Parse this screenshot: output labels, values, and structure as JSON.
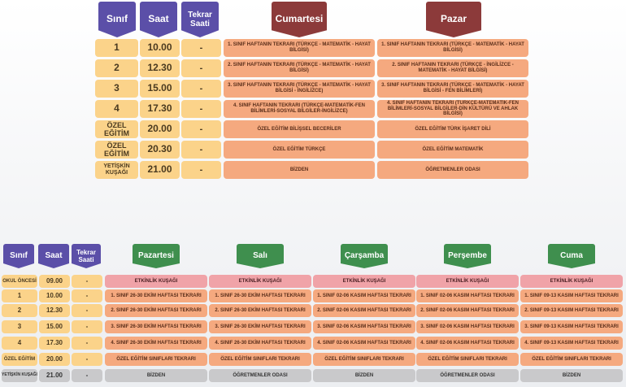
{
  "top": {
    "headers": {
      "sinif": "Sınıf",
      "saat": "Saat",
      "tekrar": "Tekrar Saati",
      "day1": "Cumartesi",
      "day2": "Pazar"
    },
    "rows": [
      {
        "sinif": "1",
        "saat": "10.00",
        "tekrar": "-",
        "d1": "1. SINIF HAFTANIN TEKRARI (TÜRKÇE - MATEMATİK - HAYAT BİLGİSİ)",
        "d2": "1. SINIF HAFTANIN TEKRARI (TÜRKÇE - MATEMATİK - HAYAT BİLGİSİ)"
      },
      {
        "sinif": "2",
        "saat": "12.30",
        "tekrar": "-",
        "d1": "2. SINIF HAFTANIN TEKRARI (TÜRKÇE - MATEMATİK - HAYAT BİLGİSİ)",
        "d2": "2. SINIF HAFTANIN TEKRARI (TÜRKÇE - İNGİLİZCE - MATEMATİK - HAYAT BİLGİSİ)"
      },
      {
        "sinif": "3",
        "saat": "15.00",
        "tekrar": "-",
        "d1": "3. SINIF HAFTANIN TEKRARI (TÜRKÇE - MATEMATİK - HAYAT BİLGİSİ - İNGİLİZCE)",
        "d2": "3. SINIF HAFTANIN TEKRARI (TÜRKÇE - MATEMATİK - HAYAT BİLGİSİ - FEN BİLİMLERİ)"
      },
      {
        "sinif": "4",
        "saat": "17.30",
        "tekrar": "-",
        "d1": "4. SINIF HAFTANIN TEKRARI (TÜRKÇE-MATEMATİK-FEN BİLİMLERİ-SOSYAL BİLGİLER-İNGİLİZCE)",
        "d2": "4. SINIF HAFTANIN TEKRARI (TÜRKÇE-MATEMATİK-FEN BİLİMLERİ-SOSYAL BİLGİLER-DİN KÜLTÜRÜ VE AHLAK BİLGİSİ)"
      },
      {
        "sinif": "ÖZEL EĞİTİM",
        "saat": "20.00",
        "tekrar": "-",
        "d1": "ÖZEL EĞİTİM BİLİŞSEL BECERİLER",
        "d2": "ÖZEL EĞİTİM TÜRK İŞARET DİLİ"
      },
      {
        "sinif": "ÖZEL EĞİTİM",
        "saat": "20.30",
        "tekrar": "-",
        "d1": "ÖZEL EĞİTİM TÜRKÇE",
        "d2": "ÖZEL EĞİTİM MATEMATİK"
      },
      {
        "sinif": "YETİŞKİN KUŞAĞI",
        "saat": "21.00",
        "tekrar": "-",
        "d1": "BİZDEN",
        "d2": "ÖĞRETMENLER ODASI"
      }
    ]
  },
  "bottom": {
    "headers": {
      "sinif": "Sınıf",
      "saat": "Saat",
      "tekrar": "Tekrar Saati",
      "days": [
        "Pazartesi",
        "Salı",
        "Çarşamba",
        "Perşembe",
        "Cuma"
      ]
    },
    "rows": [
      {
        "sinif": "OKUL ÖNCESİ",
        "saat": "09.00",
        "tekrar": "-",
        "cells": [
          "ETKİNLİK KUŞAĞI",
          "ETKİNLİK KUŞAĞI",
          "ETKİNLİK KUŞAĞI",
          "ETKİNLİK KUŞAĞI",
          "ETKİNLİK KUŞAĞI"
        ]
      },
      {
        "sinif": "1",
        "saat": "10.00",
        "tekrar": "-",
        "cells": [
          "1. SINIF 26-30 EKİM HAFTASI TEKRARI",
          "1. SINIF 26-30 EKİM HAFTASI TEKRARI",
          "1. SINIF 02-06 KASIM HAFTASI TEKRARI",
          "1. SINIF 02-06 KASIM HAFTASI TEKRARI",
          "1. SINIF 09-13 KASIM HAFTASI TEKRARI"
        ]
      },
      {
        "sinif": "2",
        "saat": "12.30",
        "tekrar": "-",
        "cells": [
          "2. SINIF 26-30 EKİM HAFTASI TEKRARI",
          "2. SINIF 26-30 EKİM HAFTASI TEKRARI",
          "2. SINIF 02-06 KASIM HAFTASI TEKRARI",
          "2. SINIF 02-06 KASIM HAFTASI TEKRARI",
          "2. SINIF 09-13 KASIM HAFTASI TEKRARI"
        ]
      },
      {
        "sinif": "3",
        "saat": "15.00",
        "tekrar": "-",
        "cells": [
          "3. SINIF 26-30 EKİM HAFTASI TEKRARI",
          "3. SINIF 26-30 EKİM HAFTASI TEKRARI",
          "3. SINIF 02-06 KASIM HAFTASI TEKRARI",
          "3. SINIF 02-06 KASIM HAFTASI TEKRARI",
          "3. SINIF 09-13 KASIM HAFTASI TEKRARI"
        ]
      },
      {
        "sinif": "4",
        "saat": "17.30",
        "tekrar": "-",
        "cells": [
          "4. SINIF 26-30 EKİM HAFTASI TEKRARI",
          "4. SINIF 26-30 EKİM HAFTASI TEKRARI",
          "4. SINIF 02-06 KASIM HAFTASI TEKRARI",
          "4. SINIF 02-06 KASIM HAFTASI TEKRARI",
          "4. SINIF 09-13 KASIM HAFTASI TEKRARI"
        ]
      },
      {
        "sinif": "ÖZEL EĞİTİM",
        "saat": "20.00",
        "tekrar": "-",
        "cells": [
          "ÖZEL EĞİTİM SINIFLARI TEKRARI",
          "ÖZEL EĞİTİM SINIFLARI TEKRARI",
          "ÖZEL EĞİTİM SINIFLARI TEKRARI",
          "ÖZEL EĞİTİM SINIFLARI TEKRARI",
          "ÖZEL EĞİTİM SINIFLARI TEKRARI"
        ]
      },
      {
        "sinif": "YETİŞKİN KUŞAĞI",
        "saat": "21.00",
        "tekrar": "-",
        "cells": [
          "BİZDEN",
          "ÖĞRETMENLER ODASI",
          "BİZDEN",
          "ÖĞRETMENLER ODASI",
          "BİZDEN"
        ]
      }
    ]
  }
}
